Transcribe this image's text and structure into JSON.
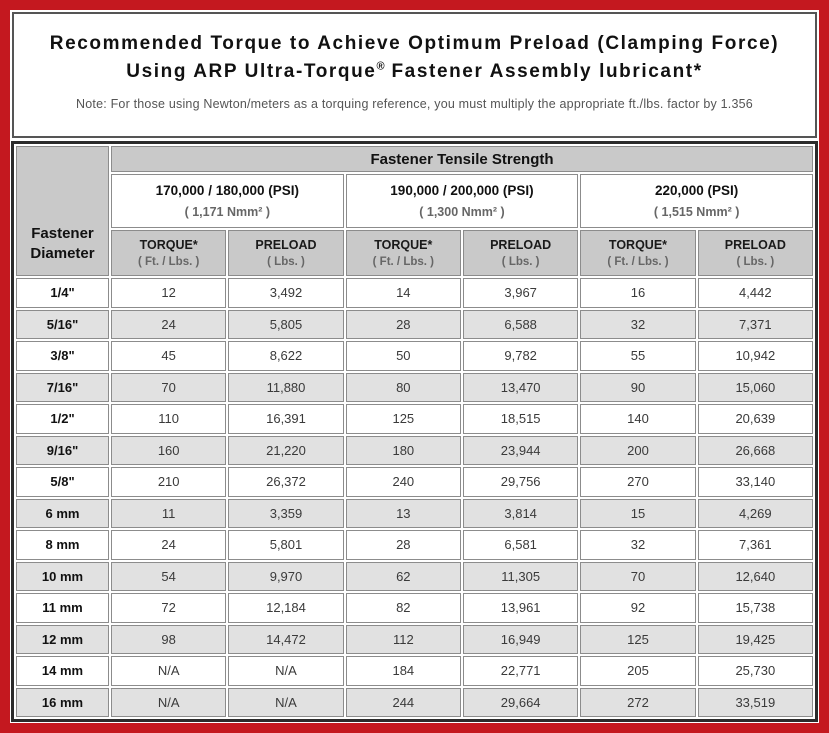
{
  "colors": {
    "frame_red": "#c4181f",
    "header_gray": "#c9c9c9",
    "alt_row_gray": "#e1e1e1",
    "grid_line": "#8c8c8c",
    "table_border": "#2b2b2b"
  },
  "title": {
    "line1": "Recommended Torque to Achieve Optimum Preload (Clamping Force)",
    "line2_prefix": "Using ARP Ultra-Torque",
    "line2_reg": "®",
    "line2_suffix": " Fastener Assembly lubricant*",
    "note": "Note: For those using Newton/meters as a torquing reference, you must multiply the appropriate ft./lbs. factor by 1.356"
  },
  "table": {
    "tensile_header": "Fastener Tensile Strength",
    "diameter_header": "Fastener Diameter",
    "groups": [
      {
        "psi": "170,000 / 180,000 (PSI)",
        "nmm": "( 1,171 Nmm² )"
      },
      {
        "psi": "190,000 / 200,000 (PSI)",
        "nmm": "( 1,300 Nmm² )"
      },
      {
        "psi": "220,000 (PSI)",
        "nmm": "( 1,515 Nmm² )"
      }
    ],
    "col_headers": {
      "torque": "TORQUE*",
      "torque_unit": "( Ft. / Lbs. )",
      "preload": "PRELOAD",
      "preload_unit": "( Lbs. )"
    },
    "rows": [
      {
        "diameter": "1/4\"",
        "values": [
          "12",
          "3,492",
          "14",
          "3,967",
          "16",
          "4,442"
        ]
      },
      {
        "diameter": "5/16\"",
        "values": [
          "24",
          "5,805",
          "28",
          "6,588",
          "32",
          "7,371"
        ]
      },
      {
        "diameter": "3/8\"",
        "values": [
          "45",
          "8,622",
          "50",
          "9,782",
          "55",
          "10,942"
        ]
      },
      {
        "diameter": "7/16\"",
        "values": [
          "70",
          "11,880",
          "80",
          "13,470",
          "90",
          "15,060"
        ]
      },
      {
        "diameter": "1/2\"",
        "values": [
          "110",
          "16,391",
          "125",
          "18,515",
          "140",
          "20,639"
        ]
      },
      {
        "diameter": "9/16\"",
        "values": [
          "160",
          "21,220",
          "180",
          "23,944",
          "200",
          "26,668"
        ]
      },
      {
        "diameter": "5/8\"",
        "values": [
          "210",
          "26,372",
          "240",
          "29,756",
          "270",
          "33,140"
        ]
      },
      {
        "diameter": "6 mm",
        "values": [
          "11",
          "3,359",
          "13",
          "3,814",
          "15",
          "4,269"
        ]
      },
      {
        "diameter": "8 mm",
        "values": [
          "24",
          "5,801",
          "28",
          "6,581",
          "32",
          "7,361"
        ]
      },
      {
        "diameter": "10 mm",
        "values": [
          "54",
          "9,970",
          "62",
          "11,305",
          "70",
          "12,640"
        ]
      },
      {
        "diameter": "11 mm",
        "values": [
          "72",
          "12,184",
          "82",
          "13,961",
          "92",
          "15,738"
        ]
      },
      {
        "diameter": "12 mm",
        "values": [
          "98",
          "14,472",
          "112",
          "16,949",
          "125",
          "19,425"
        ]
      },
      {
        "diameter": "14 mm",
        "values": [
          "N/A",
          "N/A",
          "184",
          "22,771",
          "205",
          "25,730"
        ]
      },
      {
        "diameter": "16 mm",
        "values": [
          "N/A",
          "N/A",
          "244",
          "29,664",
          "272",
          "33,519"
        ]
      }
    ]
  }
}
